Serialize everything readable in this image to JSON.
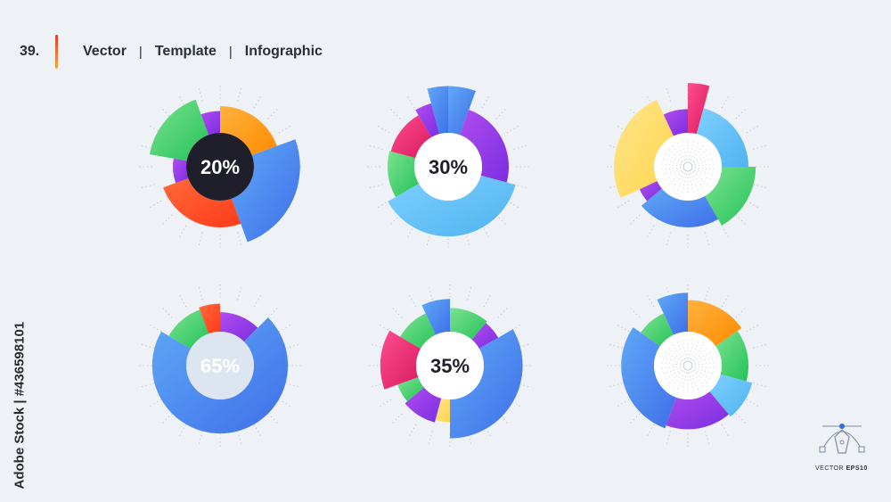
{
  "header": {
    "number": "39.",
    "parts": [
      "Vector",
      "Template",
      "Infographic"
    ],
    "separator": "|"
  },
  "watermark": {
    "side_text": "Adobe Stock | #436598101"
  },
  "badge": {
    "prefix": "VECTOR",
    "suffix": "EPS10"
  },
  "colors": {
    "purple": "#7b2ee0",
    "orange": "#ff8a00",
    "green": "#25c25a",
    "blue": "#3f6fe8",
    "lightblue": "#4fb3f0",
    "red": "#ff3b1a",
    "magenta": "#d81b60",
    "yellow": "#ffd54f",
    "dark": "#1e1f2b"
  },
  "chart_data": [
    {
      "type": "pie",
      "label": "20%",
      "center": "dark",
      "segments": [
        {
          "start": 0,
          "end": 70,
          "color": "orange",
          "scale": 1.0
        },
        {
          "start": 70,
          "end": 160,
          "color": "blue",
          "scale": 1.32
        },
        {
          "start": 160,
          "end": 250,
          "color": "red",
          "scale": 1.0
        },
        {
          "start": 250,
          "end": 280,
          "color": "purple",
          "scale": 0.78
        },
        {
          "start": 280,
          "end": 340,
          "color": "green",
          "scale": 1.18
        },
        {
          "start": 340,
          "end": 360,
          "color": "purple",
          "scale": 0.92
        }
      ]
    },
    {
      "type": "pie",
      "label": "30%",
      "center": "white",
      "segments": [
        {
          "start": 0,
          "end": 20,
          "color": "blue",
          "scale": 1.33
        },
        {
          "start": 20,
          "end": 105,
          "color": "purple",
          "scale": 1.0
        },
        {
          "start": 105,
          "end": 240,
          "color": "lightblue",
          "scale": 1.15
        },
        {
          "start": 240,
          "end": 285,
          "color": "green",
          "scale": 1.0
        },
        {
          "start": 285,
          "end": 330,
          "color": "magenta",
          "scale": 0.98
        },
        {
          "start": 330,
          "end": 345,
          "color": "purple",
          "scale": 1.08
        },
        {
          "start": 345,
          "end": 360,
          "color": "blue",
          "scale": 1.33
        }
      ]
    },
    {
      "type": "pie",
      "label": "",
      "center": "white-dots",
      "segments": [
        {
          "start": 0,
          "end": 15,
          "color": "magenta",
          "scale": 1.38
        },
        {
          "start": 15,
          "end": 90,
          "color": "lightblue",
          "scale": 1.0
        },
        {
          "start": 90,
          "end": 150,
          "color": "green",
          "scale": 1.12
        },
        {
          "start": 150,
          "end": 230,
          "color": "blue",
          "scale": 1.0
        },
        {
          "start": 230,
          "end": 245,
          "color": "purple",
          "scale": 0.88
        },
        {
          "start": 245,
          "end": 335,
          "color": "yellow",
          "scale": 1.22
        },
        {
          "start": 335,
          "end": 360,
          "color": "purple",
          "scale": 0.95
        }
      ]
    },
    {
      "type": "pie",
      "label": "65%",
      "center": "pale",
      "segments": [
        {
          "start": 0,
          "end": 45,
          "color": "purple",
          "scale": 0.88
        },
        {
          "start": 45,
          "end": 300,
          "color": "blue",
          "scale": 1.12
        },
        {
          "start": 300,
          "end": 340,
          "color": "green",
          "scale": 0.98
        },
        {
          "start": 340,
          "end": 360,
          "color": "red",
          "scale": 1.02
        }
      ]
    },
    {
      "type": "pie",
      "label": "35%",
      "center": "white",
      "segments": [
        {
          "start": 0,
          "end": 40,
          "color": "green",
          "scale": 0.95
        },
        {
          "start": 40,
          "end": 60,
          "color": "purple",
          "scale": 0.92
        },
        {
          "start": 60,
          "end": 180,
          "color": "blue",
          "scale": 1.2
        },
        {
          "start": 180,
          "end": 195,
          "color": "yellow",
          "scale": 0.93
        },
        {
          "start": 195,
          "end": 230,
          "color": "purple",
          "scale": 0.97
        },
        {
          "start": 230,
          "end": 250,
          "color": "green",
          "scale": 0.92
        },
        {
          "start": 250,
          "end": 300,
          "color": "magenta",
          "scale": 1.15
        },
        {
          "start": 300,
          "end": 335,
          "color": "green",
          "scale": 0.95
        },
        {
          "start": 335,
          "end": 360,
          "color": "blue",
          "scale": 1.1
        }
      ]
    },
    {
      "type": "pie",
      "label": "",
      "center": "white-dots",
      "segments": [
        {
          "start": 0,
          "end": 55,
          "color": "orange",
          "scale": 1.08
        },
        {
          "start": 55,
          "end": 105,
          "color": "green",
          "scale": 1.0
        },
        {
          "start": 105,
          "end": 140,
          "color": "lightblue",
          "scale": 1.1
        },
        {
          "start": 140,
          "end": 200,
          "color": "purple",
          "scale": 1.05
        },
        {
          "start": 200,
          "end": 305,
          "color": "blue",
          "scale": 1.1
        },
        {
          "start": 305,
          "end": 335,
          "color": "green",
          "scale": 0.95
        },
        {
          "start": 335,
          "end": 360,
          "color": "blue",
          "scale": 1.2
        }
      ]
    }
  ]
}
